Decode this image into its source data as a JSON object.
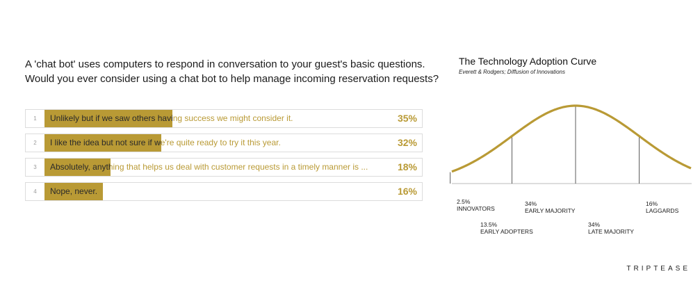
{
  "question": {
    "line1": "A 'chat bot' uses computers to respond in conversation to your guest's basic questions.",
    "line2": "Would you ever consider using a chat bot to help manage incoming reservation requests?"
  },
  "options": [
    {
      "num": "1",
      "label": "Unlikely but if we saw others having success we might consider it.",
      "percent_label": "35%",
      "value": 35
    },
    {
      "num": "2",
      "label": "I like the idea but not sure if we're quite ready to try it this year.",
      "percent_label": "32%",
      "value": 32
    },
    {
      "num": "3",
      "label": "Absolutely, anything that helps us deal with customer requests in a timely manner is ...",
      "percent_label": "18%",
      "value": 18
    },
    {
      "num": "4",
      "label": "Nope, never.",
      "percent_label": "16%",
      "value": 16
    }
  ],
  "chart_data": {
    "type": "area",
    "title": "The Technology Adoption Curve",
    "subtitle": "Everett & Rodgers; Diffusion of Innovations",
    "segments": [
      {
        "percent": "2.5%",
        "name": "INNOVATORS",
        "value": 2.5
      },
      {
        "percent": "13.5%",
        "name": "EARLY ADOPTERS",
        "value": 13.5
      },
      {
        "percent": "34%",
        "name": "EARLY MAJORITY",
        "value": 34
      },
      {
        "percent": "34%",
        "name": "LATE MAJORITY",
        "value": 34
      },
      {
        "percent": "16%",
        "name": "LAGGARDS",
        "value": 16
      }
    ],
    "curve_color": "#b99a35"
  },
  "brand": "TRIPTEASE"
}
